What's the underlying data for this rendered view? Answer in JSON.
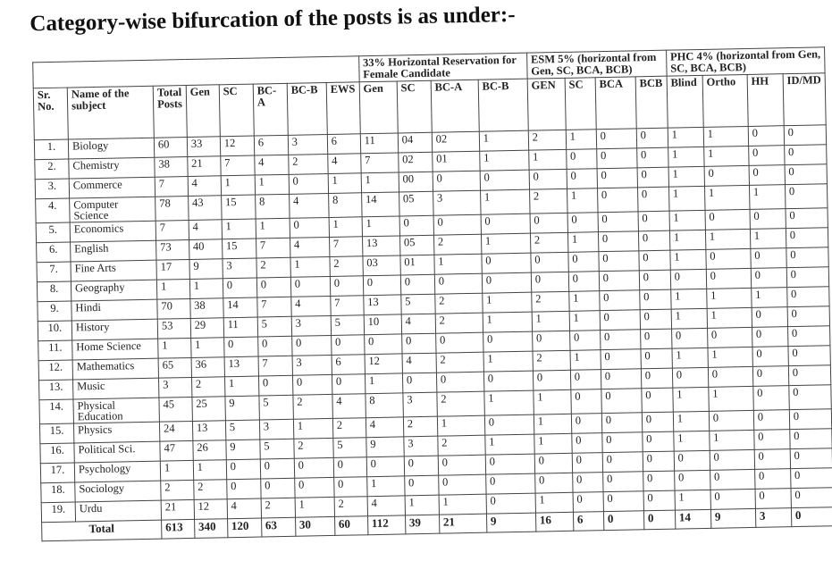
{
  "title": "Category-wise bifurcation of the posts is as under:-",
  "groups": {
    "female": "33% Horizontal Reservation for Female Candidate",
    "esm": "ESM 5% (horizontal from Gen, SC, BCA, BCB)",
    "phc": "PHC 4% (horizontal from Gen, SC, BCA, BCB)"
  },
  "headers": {
    "sr": "Sr. No.",
    "name": "Name of the subject",
    "total": "Total Posts",
    "vertical": [
      "Gen",
      "SC",
      "BC-A",
      "BC-B",
      "EWS"
    ],
    "female": [
      "Gen",
      "SC",
      "BC-A",
      "BC-B"
    ],
    "esm": [
      "GEN",
      "SC",
      "BCA",
      "BCB"
    ],
    "phc": [
      "Blind",
      "Ortho",
      "HH",
      "ID/MD"
    ]
  },
  "rows": [
    {
      "sr": "1.",
      "name": "Biology",
      "values": [
        "60",
        "33",
        "12",
        "6",
        "3",
        "6",
        "11",
        "04",
        "02",
        "1",
        "2",
        "1",
        "0",
        "0",
        "1",
        "1",
        "0",
        "0"
      ]
    },
    {
      "sr": "2.",
      "name": "Chemistry",
      "values": [
        "38",
        "21",
        "7",
        "4",
        "2",
        "4",
        "7",
        "02",
        "01",
        "1",
        "1",
        "0",
        "0",
        "0",
        "1",
        "1",
        "0",
        "0"
      ]
    },
    {
      "sr": "3.",
      "name": "Commerce",
      "values": [
        "7",
        "4",
        "1",
        "1",
        "0",
        "1",
        "1",
        "00",
        "0",
        "0",
        "0",
        "0",
        "0",
        "0",
        "1",
        "0",
        "0",
        "0"
      ]
    },
    {
      "sr": "4.",
      "name": "Computer Science",
      "values": [
        "78",
        "43",
        "15",
        "8",
        "4",
        "8",
        "14",
        "05",
        "3",
        "1",
        "2",
        "1",
        "0",
        "0",
        "1",
        "1",
        "1",
        "0"
      ]
    },
    {
      "sr": "5.",
      "name": "Economics",
      "values": [
        "7",
        "4",
        "1",
        "1",
        "0",
        "1",
        "1",
        "0",
        "0",
        "0",
        "0",
        "0",
        "0",
        "0",
        "1",
        "0",
        "0",
        "0"
      ]
    },
    {
      "sr": "6.",
      "name": "English",
      "values": [
        "73",
        "40",
        "15",
        "7",
        "4",
        "7",
        "13",
        "05",
        "2",
        "1",
        "2",
        "1",
        "0",
        "0",
        "1",
        "1",
        "1",
        "0"
      ]
    },
    {
      "sr": "7.",
      "name": "Fine Arts",
      "values": [
        "17",
        "9",
        "3",
        "2",
        "1",
        "2",
        "03",
        "01",
        "1",
        "0",
        "0",
        "0",
        "0",
        "0",
        "1",
        "0",
        "0",
        "0"
      ]
    },
    {
      "sr": "8.",
      "name": "Geography",
      "values": [
        "1",
        "1",
        "0",
        "0",
        "0",
        "0",
        "0",
        "0",
        "0",
        "0",
        "0",
        "0",
        "0",
        "0",
        "0",
        "0",
        "0",
        "0"
      ]
    },
    {
      "sr": "9.",
      "name": "Hindi",
      "values": [
        "70",
        "38",
        "14",
        "7",
        "4",
        "7",
        "13",
        "5",
        "2",
        "1",
        "2",
        "1",
        "0",
        "0",
        "1",
        "1",
        "1",
        "0"
      ]
    },
    {
      "sr": "10.",
      "name": "History",
      "values": [
        "53",
        "29",
        "11",
        "5",
        "3",
        "5",
        "10",
        "4",
        "2",
        "1",
        "1",
        "1",
        "0",
        "0",
        "1",
        "1",
        "0",
        "0"
      ]
    },
    {
      "sr": "11.",
      "name": "Home Science",
      "values": [
        "1",
        "1",
        "0",
        "0",
        "0",
        "0",
        "0",
        "0",
        "0",
        "0",
        "0",
        "0",
        "0",
        "0",
        "0",
        "0",
        "0",
        "0"
      ]
    },
    {
      "sr": "12.",
      "name": "Mathematics",
      "values": [
        "65",
        "36",
        "13",
        "7",
        "3",
        "6",
        "12",
        "4",
        "2",
        "1",
        "2",
        "1",
        "0",
        "0",
        "1",
        "1",
        "0",
        "0"
      ]
    },
    {
      "sr": "13.",
      "name": "Music",
      "values": [
        "3",
        "2",
        "1",
        "0",
        "0",
        "0",
        "1",
        "0",
        "0",
        "0",
        "0",
        "0",
        "0",
        "0",
        "0",
        "0",
        "0",
        "0"
      ]
    },
    {
      "sr": "14.",
      "name": "Physical Education",
      "values": [
        "45",
        "25",
        "9",
        "5",
        "2",
        "4",
        "8",
        "3",
        "2",
        "1",
        "1",
        "0",
        "0",
        "0",
        "1",
        "1",
        "0",
        "0"
      ]
    },
    {
      "sr": "15.",
      "name": "Physics",
      "values": [
        "24",
        "13",
        "5",
        "3",
        "1",
        "2",
        "4",
        "2",
        "1",
        "0",
        "1",
        "0",
        "0",
        "0",
        "1",
        "0",
        "0",
        "0"
      ]
    },
    {
      "sr": "16.",
      "name": "Political Sci.",
      "values": [
        "47",
        "26",
        "9",
        "5",
        "2",
        "5",
        "9",
        "3",
        "2",
        "1",
        "1",
        "0",
        "0",
        "0",
        "1",
        "1",
        "0",
        "0"
      ]
    },
    {
      "sr": "17.",
      "name": "Psychology",
      "values": [
        "1",
        "1",
        "0",
        "0",
        "0",
        "0",
        "0",
        "0",
        "0",
        "0",
        "0",
        "0",
        "0",
        "0",
        "0",
        "0",
        "0",
        "0"
      ]
    },
    {
      "sr": "18.",
      "name": "Sociology",
      "values": [
        "2",
        "2",
        "0",
        "0",
        "0",
        "0",
        "1",
        "0",
        "0",
        "0",
        "0",
        "0",
        "0",
        "0",
        "0",
        "0",
        "0",
        "0"
      ]
    },
    {
      "sr": "19.",
      "name": "Urdu",
      "values": [
        "21",
        "12",
        "4",
        "2",
        "1",
        "2",
        "4",
        "1",
        "1",
        "0",
        "1",
        "0",
        "0",
        "0",
        "1",
        "0",
        "0",
        "0"
      ]
    }
  ],
  "total": {
    "label": "Total",
    "values": [
      "613",
      "340",
      "120",
      "63",
      "30",
      "60",
      "112",
      "39",
      "21",
      "9",
      "16",
      "6",
      "0",
      "0",
      "14",
      "9",
      "3",
      "0"
    ]
  }
}
